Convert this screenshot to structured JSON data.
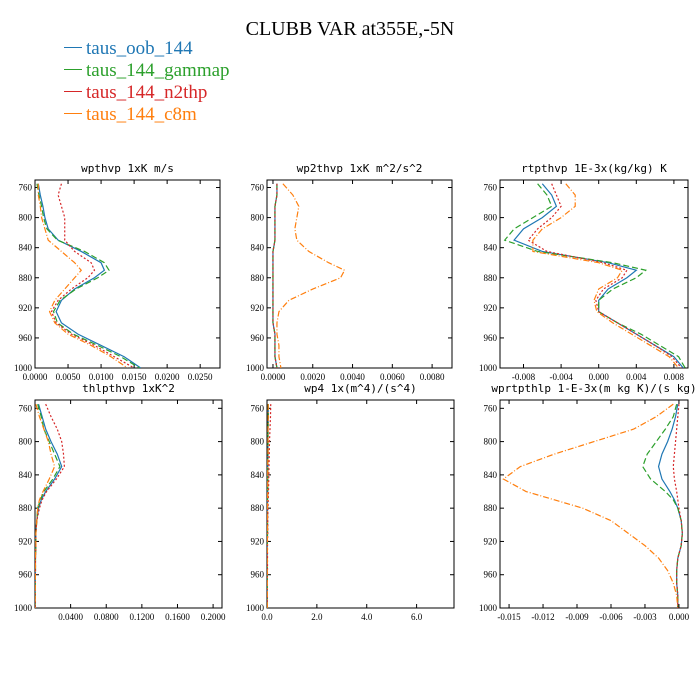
{
  "title": "CLUBB VAR at355E,-5N",
  "legend": [
    {
      "name": "taus_oob_144",
      "color": "#1f77b4"
    },
    {
      "name": "taus_144_gammap",
      "color": "#2ca02c"
    },
    {
      "name": "taus_144_n2thp",
      "color": "#d62728"
    },
    {
      "name": "taus_144_c8m",
      "color": "#ff7f0e"
    }
  ],
  "chart_data": [
    {
      "type": "line",
      "title": "wpthvp  1xK m/s",
      "xlim": [
        0,
        0.028
      ],
      "ylim": [
        1000,
        750
      ],
      "xticks": [
        "0.0000",
        "0.0050",
        "0.0100",
        "0.0150",
        "0.0200",
        "0.0250"
      ],
      "xtick_values": [
        0,
        0.005,
        0.01,
        0.015,
        0.02,
        0.025
      ],
      "yticks": [
        "760",
        "800",
        "840",
        "880",
        "920",
        "960",
        "1000"
      ],
      "ytick_values": [
        760,
        800,
        840,
        880,
        920,
        960,
        1000
      ],
      "y": [
        755,
        770,
        785,
        800,
        815,
        830,
        845,
        860,
        870,
        880,
        895,
        910,
        925,
        940,
        955,
        970,
        985,
        1000
      ],
      "series": [
        {
          "name": "taus_oob_144",
          "color": "#1f77b4",
          "dash": "",
          "values": [
            0.0005,
            0.0008,
            0.0012,
            0.0015,
            0.002,
            0.0035,
            0.007,
            0.01,
            0.0105,
            0.009,
            0.006,
            0.004,
            0.0032,
            0.004,
            0.0065,
            0.01,
            0.0135,
            0.016
          ]
        },
        {
          "name": "taus_144_gammap",
          "color": "#2ca02c",
          "dash": "6,3",
          "values": [
            0.0003,
            0.0006,
            0.001,
            0.0013,
            0.0018,
            0.0034,
            0.0075,
            0.0105,
            0.0112,
            0.0095,
            0.0062,
            0.0038,
            0.0028,
            0.0034,
            0.0058,
            0.0095,
            0.013,
            0.0158
          ]
        },
        {
          "name": "taus_144_n2thp",
          "color": "#d62728",
          "dash": "2,2",
          "values": [
            0.004,
            0.0035,
            0.004,
            0.0045,
            0.0045,
            0.0045,
            0.006,
            0.0085,
            0.009,
            0.008,
            0.0055,
            0.0035,
            0.0025,
            0.0032,
            0.0055,
            0.009,
            0.012,
            0.015
          ]
        },
        {
          "name": "taus_144_c8m",
          "color": "#ff7f0e",
          "dash": "6,2,1,2",
          "values": [
            0.0005,
            0.0005,
            0.0008,
            0.001,
            0.0015,
            0.002,
            0.004,
            0.006,
            0.007,
            0.006,
            0.0045,
            0.003,
            0.0022,
            0.003,
            0.005,
            0.0085,
            0.0115,
            0.014
          ]
        }
      ]
    },
    {
      "type": "line",
      "title": "wp2thvp  1xK m^2/s^2",
      "xlim": [
        -0.0003,
        0.009
      ],
      "ylim": [
        1000,
        750
      ],
      "xticks": [
        "0.0000",
        "0.0020",
        "0.0040",
        "0.0060",
        "0.0080"
      ],
      "xtick_values": [
        0,
        0.002,
        0.004,
        0.006,
        0.008
      ],
      "yticks": [
        "760",
        "800",
        "840",
        "880",
        "920",
        "960",
        "1000"
      ],
      "ytick_values": [
        760,
        800,
        840,
        880,
        920,
        960,
        1000
      ],
      "y": [
        755,
        770,
        785,
        800,
        815,
        830,
        845,
        860,
        870,
        880,
        895,
        910,
        925,
        940,
        955,
        970,
        985,
        1000
      ],
      "series": [
        {
          "name": "taus_oob_144",
          "color": "#1f77b4",
          "dash": "",
          "values": [
            0.0002,
            0.0002,
            0.0001,
            0.0001,
            0.0001,
            0.0001,
            0.0,
            0.0,
            0.0,
            0.0,
            0.0,
            0.0,
            0.0,
            0.0,
            0.0001,
            0.0001,
            0.0001,
            0.0002
          ]
        },
        {
          "name": "taus_144_gammap",
          "color": "#2ca02c",
          "dash": "6,3",
          "values": [
            0.0002,
            0.0002,
            0.0001,
            0.0001,
            0.0001,
            0.0001,
            0.0,
            0.0,
            0.0,
            0.0,
            0.0,
            0.0,
            0.0,
            0.0,
            0.0001,
            0.0001,
            0.0001,
            0.0002
          ]
        },
        {
          "name": "taus_144_n2thp",
          "color": "#d62728",
          "dash": "2,2",
          "values": [
            0.0002,
            0.0002,
            0.0001,
            0.0001,
            0.0001,
            0.0001,
            0.0,
            0.0,
            0.0,
            0.0,
            0.0,
            0.0,
            0.0,
            0.0,
            0.0001,
            0.0001,
            0.0001,
            0.0002
          ]
        },
        {
          "name": "taus_144_c8m",
          "color": "#ff7f0e",
          "dash": "6,2,1,2",
          "values": [
            0.0005,
            0.001,
            0.0013,
            0.0012,
            0.0011,
            0.0012,
            0.0018,
            0.0028,
            0.0036,
            0.0034,
            0.002,
            0.0008,
            0.0003,
            0.0002,
            0.0002,
            0.0003,
            0.0003,
            0.0004
          ]
        }
      ]
    },
    {
      "type": "line",
      "title": "rtpthvp  1E-3x(kg/kg) K",
      "xlim": [
        -0.0105,
        0.0095
      ],
      "ylim": [
        1000,
        750
      ],
      "xticks": [
        "-0.008",
        "-0.004",
        "0.000",
        "0.004",
        "0.008"
      ],
      "xtick_values": [
        -0.008,
        -0.004,
        0,
        0.004,
        0.008
      ],
      "yticks": [
        "760",
        "800",
        "840",
        "880",
        "920",
        "960",
        "1000"
      ],
      "ytick_values": [
        760,
        800,
        840,
        880,
        920,
        960,
        1000
      ],
      "y": [
        755,
        770,
        785,
        800,
        815,
        830,
        845,
        860,
        870,
        880,
        895,
        910,
        925,
        940,
        955,
        970,
        985,
        1000
      ],
      "series": [
        {
          "name": "taus_oob_144",
          "color": "#1f77b4",
          "dash": "",
          "values": [
            -0.006,
            -0.005,
            -0.0045,
            -0.006,
            -0.008,
            -0.009,
            -0.006,
            0.001,
            0.004,
            0.003,
            0.001,
            0.0,
            0.0,
            0.002,
            0.004,
            0.006,
            0.008,
            0.009
          ]
        },
        {
          "name": "taus_144_gammap",
          "color": "#2ca02c",
          "dash": "6,3",
          "values": [
            -0.0065,
            -0.0055,
            -0.005,
            -0.007,
            -0.009,
            -0.01,
            -0.0065,
            0.0015,
            0.005,
            0.004,
            0.0015,
            0.0,
            0.0,
            0.002,
            0.0045,
            0.0065,
            0.0085,
            0.0092
          ]
        },
        {
          "name": "taus_144_n2thp",
          "color": "#d62728",
          "dash": "2,2",
          "values": [
            -0.005,
            -0.0045,
            -0.004,
            -0.005,
            -0.0065,
            -0.0075,
            -0.0055,
            0.0005,
            0.003,
            0.0025,
            0.0005,
            -0.0003,
            0.0,
            0.002,
            0.004,
            0.006,
            0.0078,
            0.0088
          ]
        },
        {
          "name": "taus_144_c8m",
          "color": "#ff7f0e",
          "dash": "6,2,1,2",
          "values": [
            -0.0035,
            -0.0025,
            -0.0025,
            -0.004,
            -0.006,
            -0.007,
            -0.007,
            0.0,
            0.0025,
            0.002,
            0.0,
            -0.0005,
            -0.0002,
            0.0015,
            0.0035,
            0.0055,
            0.0075,
            0.0085
          ]
        }
      ]
    },
    {
      "type": "line",
      "title": "thlpthvp  1xK^2",
      "xlim": [
        0,
        0.21
      ],
      "ylim": [
        1000,
        750
      ],
      "xticks": [
        "0.0400",
        "0.0800",
        "0.1200",
        "0.1600",
        "0.2000"
      ],
      "xtick_values": [
        0.04,
        0.08,
        0.12,
        0.16,
        0.2
      ],
      "yticks": [
        "760",
        "800",
        "840",
        "880",
        "920",
        "960",
        "1000"
      ],
      "ytick_values": [
        760,
        800,
        840,
        880,
        920,
        960,
        1000
      ],
      "y": [
        755,
        770,
        785,
        800,
        815,
        830,
        845,
        860,
        870,
        880,
        895,
        910,
        925,
        940,
        955,
        970,
        985,
        1000
      ],
      "series": [
        {
          "name": "taus_oob_144",
          "color": "#1f77b4",
          "dash": "",
          "values": [
            0.004,
            0.008,
            0.012,
            0.018,
            0.025,
            0.03,
            0.022,
            0.012,
            0.007,
            0.004,
            0.002,
            0.001,
            0.001,
            0.0005,
            0.0005,
            0.0003,
            0.0002,
            0.0002
          ]
        },
        {
          "name": "taus_144_gammap",
          "color": "#2ca02c",
          "dash": "6,3",
          "values": [
            0.003,
            0.007,
            0.01,
            0.016,
            0.022,
            0.028,
            0.02,
            0.01,
            0.006,
            0.003,
            0.002,
            0.001,
            0.001,
            0.0005,
            0.0005,
            0.0003,
            0.0002,
            0.0002
          ]
        },
        {
          "name": "taus_144_n2thp",
          "color": "#d62728",
          "dash": "2,2",
          "values": [
            0.012,
            0.018,
            0.025,
            0.03,
            0.032,
            0.033,
            0.024,
            0.013,
            0.008,
            0.005,
            0.002,
            0.001,
            0.001,
            0.0005,
            0.0005,
            0.0003,
            0.0002,
            0.0002
          ]
        },
        {
          "name": "taus_144_c8m",
          "color": "#ff7f0e",
          "dash": "6,2,1,2",
          "values": [
            0.001,
            0.005,
            0.01,
            0.015,
            0.018,
            0.022,
            0.016,
            0.009,
            0.005,
            0.003,
            0.002,
            0.001,
            0.001,
            0.0005,
            0.0005,
            0.0003,
            0.0002,
            0.0002
          ]
        }
      ]
    },
    {
      "type": "line",
      "title": "wp4  1x(m^4)/(s^4)",
      "xlim": [
        0,
        7.5
      ],
      "ylim": [
        1000,
        750
      ],
      "xticks": [
        "0.0",
        "2.0",
        "4.0",
        "6.0"
      ],
      "xtick_values": [
        0,
        2,
        4,
        6
      ],
      "yticks": [
        "760",
        "800",
        "840",
        "880",
        "920",
        "960",
        "1000"
      ],
      "ytick_values": [
        760,
        800,
        840,
        880,
        920,
        960,
        1000
      ],
      "y": [
        755,
        770,
        785,
        800,
        815,
        830,
        845,
        860,
        870,
        880,
        895,
        910,
        925,
        940,
        955,
        970,
        985,
        1000
      ],
      "series": [
        {
          "name": "taus_oob_144",
          "color": "#1f77b4",
          "dash": "",
          "values": [
            0.05,
            0.05,
            0.04,
            0.04,
            0.04,
            0.03,
            0.03,
            0.03,
            0.02,
            0.02,
            0.02,
            0.02,
            0.01,
            0.01,
            0.01,
            0.01,
            0.01,
            0.01
          ]
        },
        {
          "name": "taus_144_gammap",
          "color": "#2ca02c",
          "dash": "6,3",
          "values": [
            0.05,
            0.05,
            0.04,
            0.04,
            0.04,
            0.03,
            0.03,
            0.03,
            0.02,
            0.02,
            0.02,
            0.02,
            0.01,
            0.01,
            0.01,
            0.01,
            0.01,
            0.01
          ]
        },
        {
          "name": "taus_144_n2thp",
          "color": "#d62728",
          "dash": "2,2",
          "values": [
            0.15,
            0.14,
            0.12,
            0.1,
            0.09,
            0.08,
            0.07,
            0.06,
            0.05,
            0.04,
            0.03,
            0.03,
            0.02,
            0.02,
            0.02,
            0.01,
            0.01,
            0.01
          ]
        },
        {
          "name": "taus_144_c8m",
          "color": "#ff7f0e",
          "dash": "6,2,1,2",
          "values": [
            0.05,
            0.05,
            0.04,
            0.04,
            0.04,
            0.03,
            0.03,
            0.03,
            0.02,
            0.02,
            0.02,
            0.02,
            0.01,
            0.01,
            0.01,
            0.01,
            0.01,
            0.01
          ]
        }
      ]
    },
    {
      "type": "line",
      "title": "wprtpthlp  1-E-3x(m kg K)/(s kg)",
      "xlim": [
        -0.0158,
        0.0008
      ],
      "ylim": [
        1000,
        750
      ],
      "xticks": [
        "-0.015",
        "-0.012",
        "-0.009",
        "-0.006",
        "-0.003",
        "0.000"
      ],
      "xtick_values": [
        -0.015,
        -0.012,
        -0.009,
        -0.006,
        -0.003,
        0
      ],
      "yticks": [
        "760",
        "800",
        "840",
        "880",
        "920",
        "960",
        "1000"
      ],
      "ytick_values": [
        760,
        800,
        840,
        880,
        920,
        960,
        1000
      ],
      "y": [
        755,
        770,
        785,
        800,
        815,
        830,
        845,
        860,
        870,
        880,
        895,
        910,
        925,
        940,
        955,
        970,
        985,
        1000
      ],
      "series": [
        {
          "name": "taus_oob_144",
          "color": "#1f77b4",
          "dash": "",
          "values": [
            -0.0001,
            -0.0003,
            -0.0006,
            -0.001,
            -0.0015,
            -0.0018,
            -0.0015,
            -0.0008,
            -0.0004,
            -0.0001,
            0.0002,
            0.0003,
            0.0002,
            -0.0001,
            -0.0002,
            -0.0002,
            -0.0001,
            -0.0001
          ]
        },
        {
          "name": "taus_144_gammap",
          "color": "#2ca02c",
          "dash": "6,3",
          "values": [
            -0.0002,
            -0.0005,
            -0.0012,
            -0.002,
            -0.0028,
            -0.0032,
            -0.0025,
            -0.0012,
            -0.0005,
            -0.0001,
            0.0002,
            0.0003,
            0.0002,
            -0.0001,
            -0.0002,
            -0.0002,
            -0.0001,
            -0.0001
          ]
        },
        {
          "name": "taus_144_n2thp",
          "color": "#d62728",
          "dash": "2,2",
          "values": [
            0.0,
            -0.0001,
            -0.0002,
            -0.0003,
            -0.0004,
            -0.0005,
            -0.0004,
            -0.0002,
            -0.0001,
            0.0,
            0.0002,
            0.0003,
            0.0002,
            -0.0001,
            -0.0002,
            -0.0002,
            -0.0001,
            -0.0001
          ]
        },
        {
          "name": "taus_144_c8m",
          "color": "#ff7f0e",
          "dash": "6,2,1,2",
          "values": [
            -0.0005,
            -0.002,
            -0.004,
            -0.0075,
            -0.011,
            -0.014,
            -0.0155,
            -0.0135,
            -0.011,
            -0.0085,
            -0.006,
            -0.0045,
            -0.003,
            -0.0018,
            -0.001,
            -0.0005,
            -0.0002,
            -0.0001
          ]
        }
      ]
    }
  ]
}
